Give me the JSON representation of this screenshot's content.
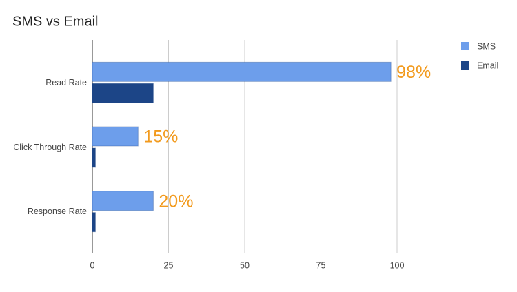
{
  "chart_data": {
    "type": "bar",
    "orientation": "horizontal",
    "title": "SMS vs Email",
    "categories": [
      "Read Rate",
      "Click Through Rate",
      "Response Rate"
    ],
    "series": [
      {
        "name": "SMS",
        "color": "#6d9eeb",
        "values": [
          98,
          15,
          20
        ],
        "value_labels": [
          "98%",
          "15%",
          "20%"
        ]
      },
      {
        "name": "Email",
        "color": "#1c4587",
        "values": [
          20,
          1,
          1
        ]
      }
    ],
    "xlim": [
      0,
      100
    ],
    "xticks": [
      0,
      25,
      50,
      75,
      100
    ],
    "grid": true,
    "legend": "top-right",
    "value_label_color": "#f29a1d"
  }
}
